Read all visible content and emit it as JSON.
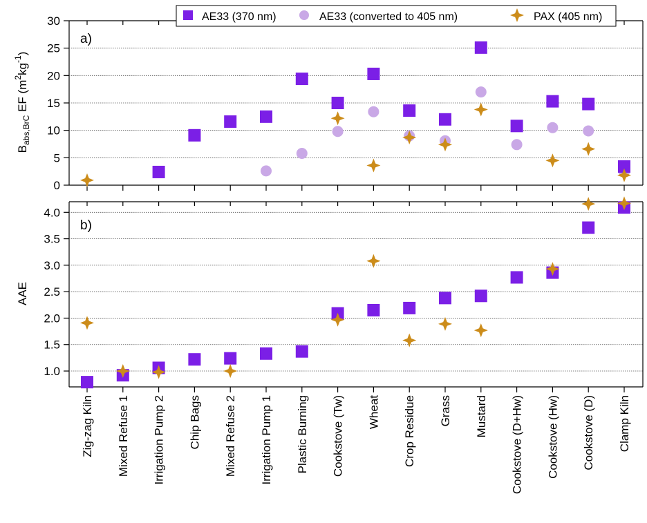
{
  "chart_data": [
    {
      "panel_label": "a)",
      "type": "scatter",
      "ylabel_main": "B",
      "ylabel_sub": "abs,BrC",
      "ylabel_rest": " EF (m",
      "ylabel_sup1": "2",
      "ylabel_unit": "kg",
      "ylabel_sup2": "-1",
      "ylabel_close": ")",
      "ylim": [
        0,
        30
      ],
      "yticks": [
        "0",
        "5",
        "10",
        "15",
        "20",
        "25",
        "30"
      ],
      "grid": true,
      "series": [
        {
          "name": "AE33 (370 nm)",
          "values": [
            null,
            null,
            2.4,
            9.1,
            11.6,
            12.5,
            19.4,
            15.0,
            20.3,
            13.6,
            12.0,
            25.1,
            10.8,
            15.3,
            14.8,
            3.4
          ]
        },
        {
          "name": "AE33 (converted to 405 nm)",
          "values": [
            null,
            null,
            null,
            null,
            null,
            2.6,
            5.8,
            9.8,
            13.4,
            9.0,
            8.1,
            17.0,
            7.4,
            10.5,
            9.9,
            2.4
          ]
        },
        {
          "name": "PAX (405 nm)",
          "values": [
            0.9,
            null,
            null,
            null,
            null,
            null,
            null,
            12.2,
            3.6,
            8.7,
            7.4,
            13.8,
            null,
            4.5,
            6.6,
            1.8
          ]
        }
      ]
    },
    {
      "panel_label": "b)",
      "type": "scatter",
      "ylabel": "AAE",
      "ylim": [
        0.7,
        4.2
      ],
      "yticks": [
        "1.0",
        "1.5",
        "2.0",
        "2.5",
        "3.0",
        "3.5",
        "4.0"
      ],
      "grid": true,
      "series": [
        {
          "name": "AE33 (370 nm)",
          "values": [
            0.79,
            0.92,
            1.06,
            1.22,
            1.24,
            1.33,
            1.37,
            2.09,
            2.15,
            2.19,
            2.38,
            2.42,
            2.77,
            2.86,
            3.71,
            4.09
          ]
        },
        {
          "name": "PAX (405 nm)",
          "values": [
            1.91,
            1.0,
            0.98,
            null,
            1.0,
            null,
            null,
            1.97,
            3.08,
            1.58,
            1.89,
            1.77,
            null,
            2.93,
            4.16,
            4.17
          ]
        }
      ]
    }
  ],
  "categories": [
    "Zig-zag Kiln",
    "Mixed Refuse 1",
    "Irrigation Pump 2",
    "Chip Bags",
    "Mixed Refuse 2",
    "Irrigation Pump 1",
    "Plastic Burning",
    "Cookstove (Tw)",
    "Wheat",
    "Crop Residue",
    "Grass",
    "Mustard",
    "Cookstove (D+Hw)",
    "Cookstove (Hw)",
    "Cookstove (D)",
    "Clamp Kiln"
  ],
  "legend": {
    "position": "top",
    "items": [
      {
        "label": "AE33 (370 nm)",
        "marker": "square",
        "color": "#7b1fe6"
      },
      {
        "label": "AE33 (converted to 405 nm)",
        "marker": "circle",
        "color": "#c9a8e6"
      },
      {
        "label": "PAX (405 nm)",
        "marker": "star4",
        "color": "#cc8c1a"
      }
    ]
  },
  "colors": {
    "ae33": "#7b1fe6",
    "ae33_converted": "#c9a8e6",
    "pax": "#cc8c1a",
    "grid": "#555555"
  }
}
